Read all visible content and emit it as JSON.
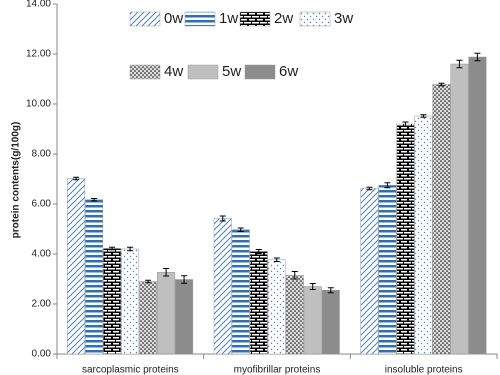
{
  "chart_data": {
    "type": "bar",
    "y_label": "protein contents(g/100g)",
    "categories": [
      "sarcoplasmic proteins",
      "myofibrillar proteins",
      "insoluble proteins"
    ],
    "series": [
      {
        "name": "0w",
        "color": "#4f81bd",
        "pattern": "diagonal",
        "values": [
          7.02,
          5.42,
          6.62
        ],
        "errors": [
          0.05,
          0.1,
          0.05
        ]
      },
      {
        "name": "1w",
        "color": "#2e6fb8",
        "pattern": "horizontal",
        "values": [
          6.17,
          4.97,
          6.75
        ],
        "errors": [
          0.05,
          0.07,
          0.1
        ]
      },
      {
        "name": "2w",
        "color": "#000000",
        "pattern": "brick",
        "values": [
          4.22,
          4.1,
          9.2
        ],
        "errors": [
          0.05,
          0.08,
          0.08
        ]
      },
      {
        "name": "3w",
        "color": "#4f81bd",
        "pattern": "dots",
        "values": [
          4.2,
          3.77,
          9.52
        ],
        "errors": [
          0.07,
          0.07,
          0.05
        ]
      },
      {
        "name": "4w",
        "color": "#000000",
        "pattern": "dense-dots",
        "values": [
          2.9,
          3.15,
          10.78
        ],
        "errors": [
          0.05,
          0.15,
          0.05
        ]
      },
      {
        "name": "5w",
        "color": "#bfbfbf",
        "pattern": "solid",
        "values": [
          3.27,
          2.7,
          11.6
        ],
        "errors": [
          0.15,
          0.12,
          0.15
        ]
      },
      {
        "name": "6w",
        "color": "#8c8c8c",
        "pattern": "solid",
        "values": [
          2.98,
          2.55,
          11.88
        ],
        "errors": [
          0.15,
          0.1,
          0.15
        ]
      }
    ],
    "ylim": [
      0,
      14
    ],
    "yticks": [
      {
        "value": 0,
        "label": "0.00"
      },
      {
        "value": 2,
        "label": "2.00"
      },
      {
        "value": 4,
        "label": "4.00"
      },
      {
        "value": 6,
        "label": "6.00"
      },
      {
        "value": 8,
        "label": "8.00"
      },
      {
        "value": 10,
        "label": "10.00"
      },
      {
        "value": 12,
        "label": "12.00"
      },
      {
        "value": 14,
        "label": "14.00"
      }
    ],
    "grid": false,
    "legend": "top"
  }
}
